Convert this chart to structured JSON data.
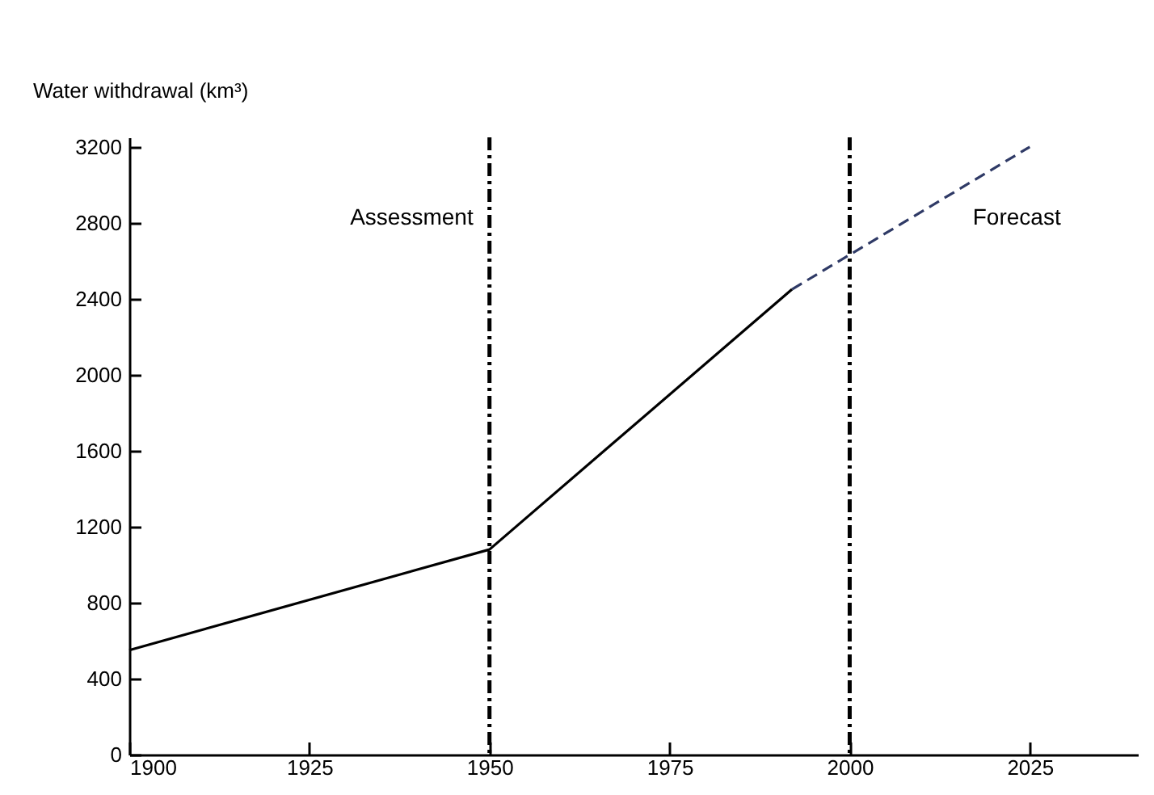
{
  "chart_data": {
    "type": "line",
    "ylabel": "Water withdrawal (km³)",
    "xlim": [
      1900,
      2040
    ],
    "xticks": [
      1900,
      1925,
      1950,
      1975,
      2000,
      2025
    ],
    "ylim": [
      0,
      3250
    ],
    "yticks": [
      0,
      400,
      800,
      1200,
      1600,
      2000,
      2400,
      2800,
      3200
    ],
    "grid": false,
    "marker": "none",
    "series": [
      {
        "color": "#000000",
        "line_style": "solid",
        "x": [
          1900,
          1950,
          1992
        ],
        "values": [
          550,
          1080,
          2450
        ]
      },
      {
        "color": "#2f3a66",
        "line_style": "dashed",
        "x": [
          1992,
          2025
        ],
        "values": [
          2450,
          3200
        ]
      }
    ],
    "ref_lines": [
      {
        "axis": "x",
        "value": 1950,
        "line_style": "dashdot"
      },
      {
        "axis": "x",
        "value": 2000,
        "line_style": "dashdot"
      }
    ],
    "annotations": [
      "Assessment",
      "Forecast"
    ]
  }
}
